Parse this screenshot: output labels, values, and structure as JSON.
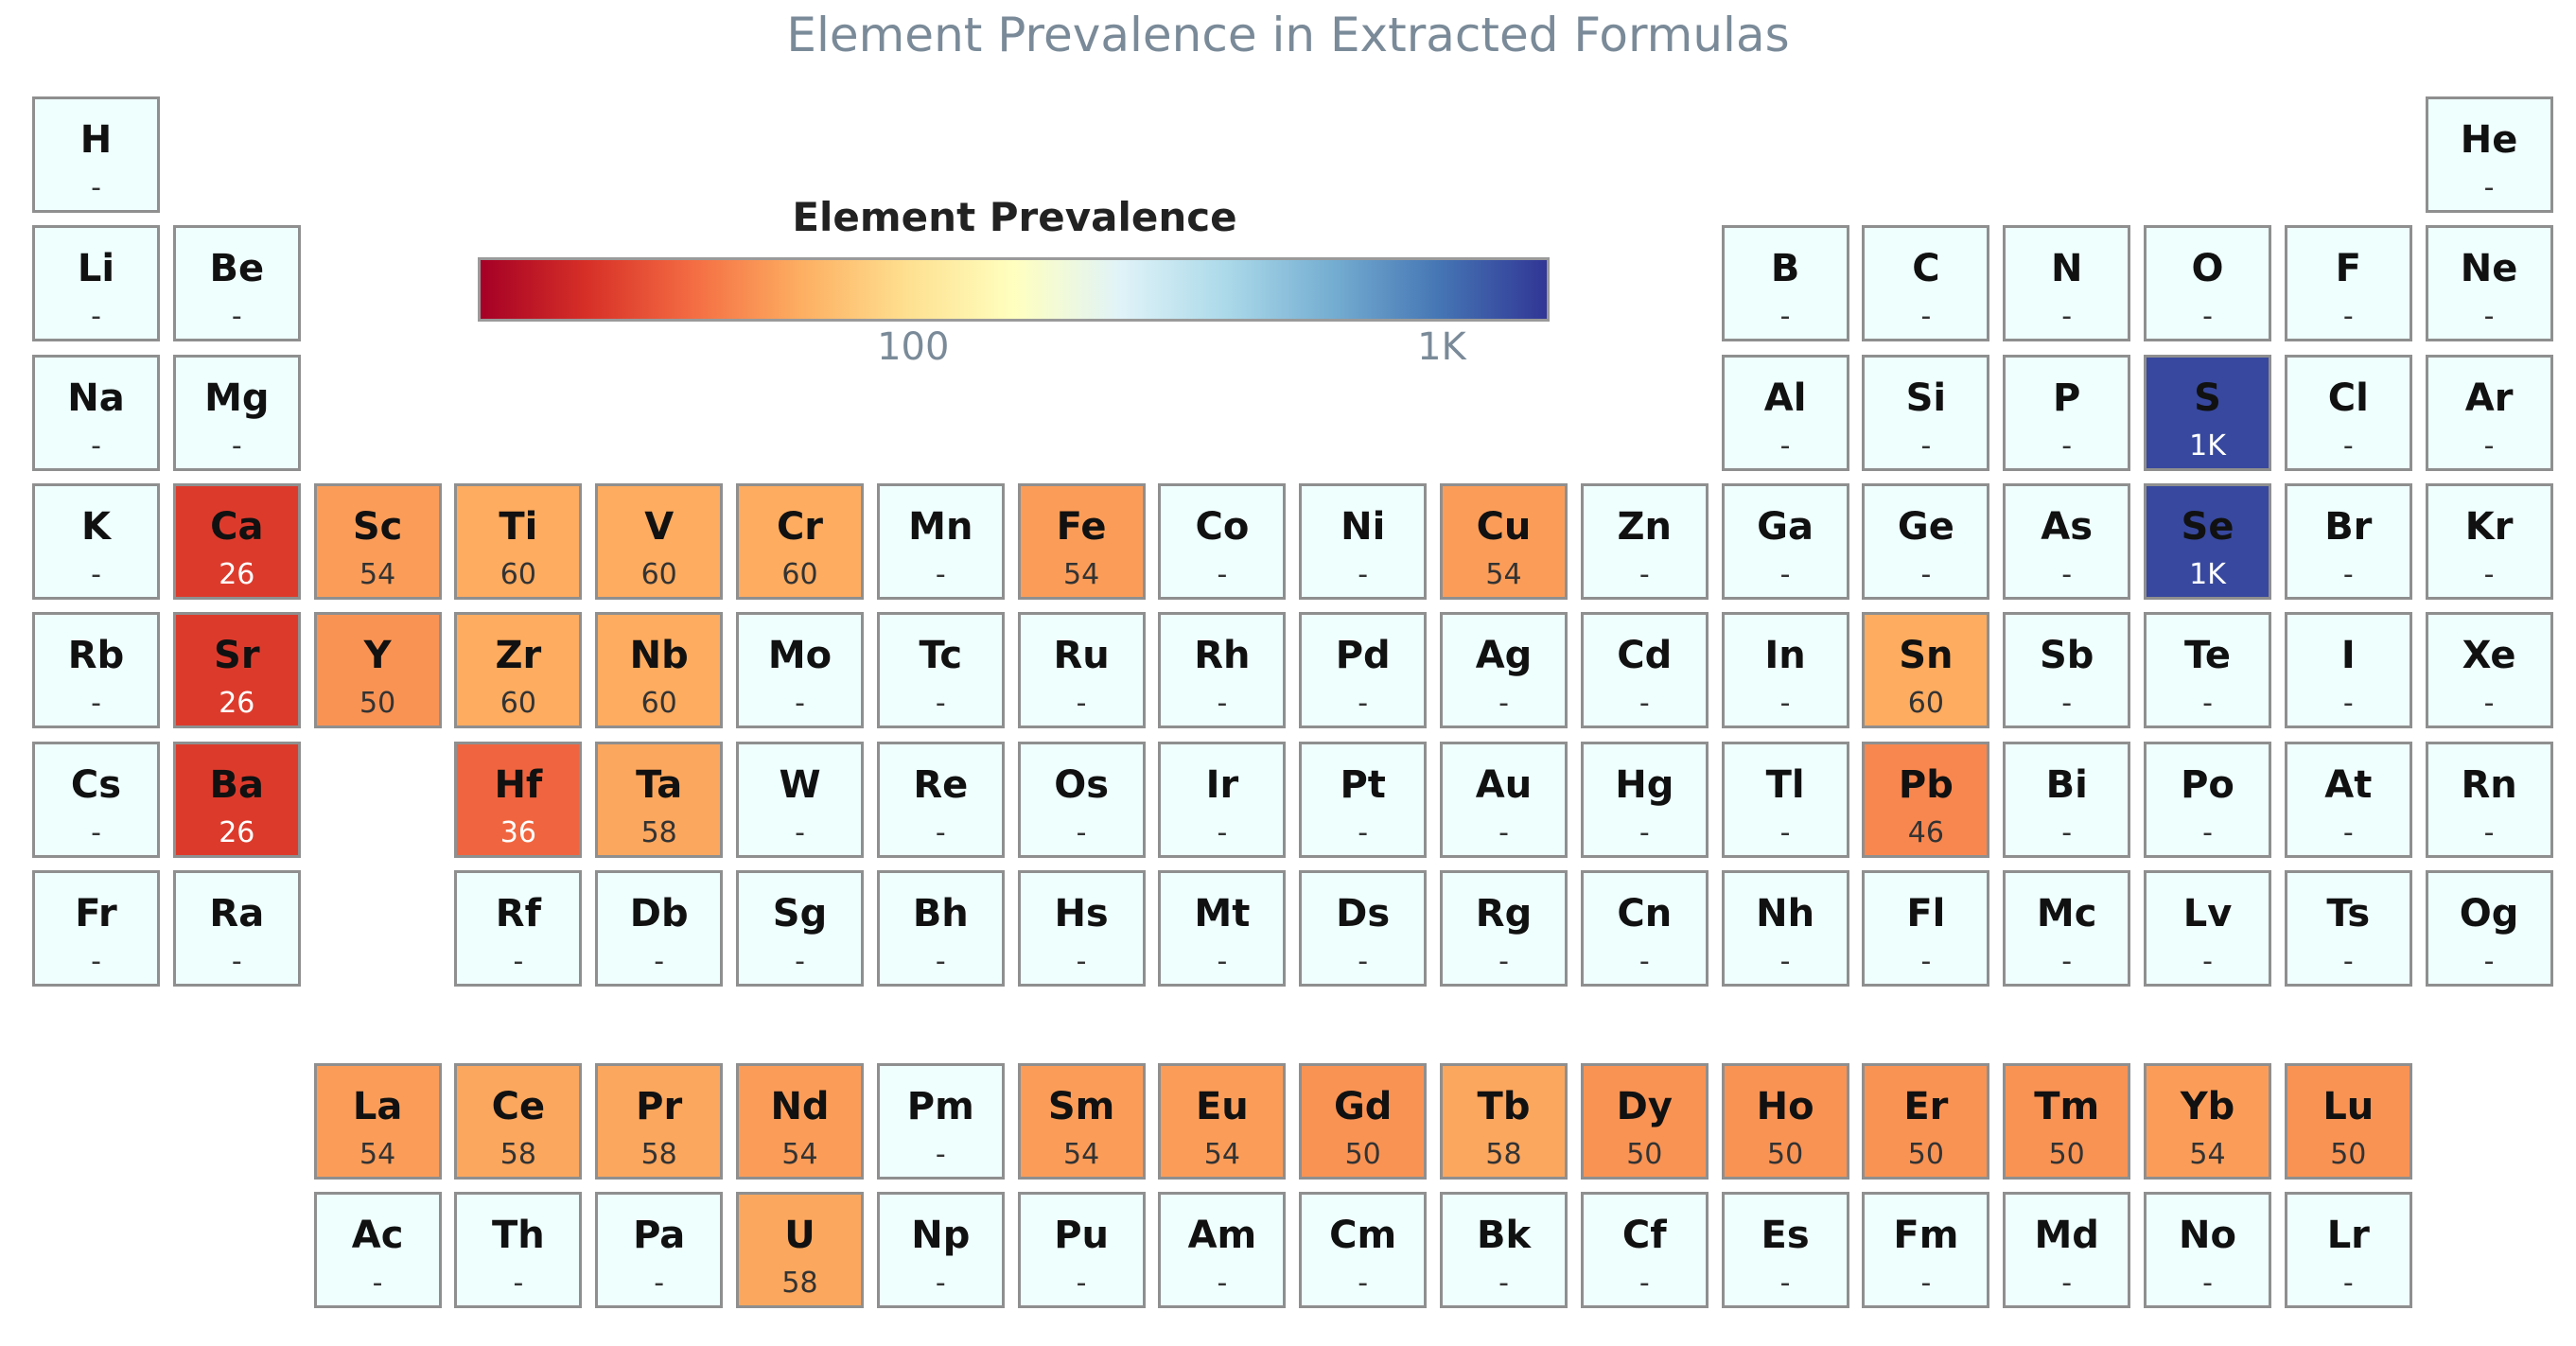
{
  "chart_data": {
    "type": "heatmap",
    "title": "Element Prevalence in Extracted Formulas",
    "colorbar": {
      "title": "Element Prevalence",
      "scale": "log",
      "range": [
        15,
        1600
      ],
      "ticks": [
        {
          "value": 100,
          "label": "100"
        },
        {
          "value": 1000,
          "label": "1K"
        }
      ],
      "colors": [
        "#a50026",
        "#d73027",
        "#f46d43",
        "#fdae61",
        "#fee090",
        "#ffffbf",
        "#e0f3f8",
        "#abd9e9",
        "#74add1",
        "#4575b4",
        "#313695"
      ]
    },
    "missing_label": "-",
    "missing_color": "#effffe",
    "elements": [
      {
        "symbol": "H",
        "row": 1,
        "col": 1,
        "value": null,
        "label": "-"
      },
      {
        "symbol": "He",
        "row": 1,
        "col": 18,
        "value": null,
        "label": "-"
      },
      {
        "symbol": "Li",
        "row": 2,
        "col": 1,
        "value": null,
        "label": "-"
      },
      {
        "symbol": "Be",
        "row": 2,
        "col": 2,
        "value": null,
        "label": "-"
      },
      {
        "symbol": "B",
        "row": 2,
        "col": 13,
        "value": null,
        "label": "-"
      },
      {
        "symbol": "C",
        "row": 2,
        "col": 14,
        "value": null,
        "label": "-"
      },
      {
        "symbol": "N",
        "row": 2,
        "col": 15,
        "value": null,
        "label": "-"
      },
      {
        "symbol": "O",
        "row": 2,
        "col": 16,
        "value": null,
        "label": "-"
      },
      {
        "symbol": "F",
        "row": 2,
        "col": 17,
        "value": null,
        "label": "-"
      },
      {
        "symbol": "Ne",
        "row": 2,
        "col": 18,
        "value": null,
        "label": "-"
      },
      {
        "symbol": "Na",
        "row": 3,
        "col": 1,
        "value": null,
        "label": "-"
      },
      {
        "symbol": "Mg",
        "row": 3,
        "col": 2,
        "value": null,
        "label": "-"
      },
      {
        "symbol": "Al",
        "row": 3,
        "col": 13,
        "value": null,
        "label": "-"
      },
      {
        "symbol": "Si",
        "row": 3,
        "col": 14,
        "value": null,
        "label": "-"
      },
      {
        "symbol": "P",
        "row": 3,
        "col": 15,
        "value": null,
        "label": "-"
      },
      {
        "symbol": "S",
        "row": 3,
        "col": 16,
        "value": 1400,
        "label": "1K"
      },
      {
        "symbol": "Cl",
        "row": 3,
        "col": 17,
        "value": null,
        "label": "-"
      },
      {
        "symbol": "Ar",
        "row": 3,
        "col": 18,
        "value": null,
        "label": "-"
      },
      {
        "symbol": "K",
        "row": 4,
        "col": 1,
        "value": null,
        "label": "-"
      },
      {
        "symbol": "Ca",
        "row": 4,
        "col": 2,
        "value": 26,
        "label": "26"
      },
      {
        "symbol": "Sc",
        "row": 4,
        "col": 3,
        "value": 54,
        "label": "54"
      },
      {
        "symbol": "Ti",
        "row": 4,
        "col": 4,
        "value": 60,
        "label": "60"
      },
      {
        "symbol": "V",
        "row": 4,
        "col": 5,
        "value": 60,
        "label": "60"
      },
      {
        "symbol": "Cr",
        "row": 4,
        "col": 6,
        "value": 60,
        "label": "60"
      },
      {
        "symbol": "Mn",
        "row": 4,
        "col": 7,
        "value": null,
        "label": "-"
      },
      {
        "symbol": "Fe",
        "row": 4,
        "col": 8,
        "value": 54,
        "label": "54"
      },
      {
        "symbol": "Co",
        "row": 4,
        "col": 9,
        "value": null,
        "label": "-"
      },
      {
        "symbol": "Ni",
        "row": 4,
        "col": 10,
        "value": null,
        "label": "-"
      },
      {
        "symbol": "Cu",
        "row": 4,
        "col": 11,
        "value": 54,
        "label": "54"
      },
      {
        "symbol": "Zn",
        "row": 4,
        "col": 12,
        "value": null,
        "label": "-"
      },
      {
        "symbol": "Ga",
        "row": 4,
        "col": 13,
        "value": null,
        "label": "-"
      },
      {
        "symbol": "Ge",
        "row": 4,
        "col": 14,
        "value": null,
        "label": "-"
      },
      {
        "symbol": "As",
        "row": 4,
        "col": 15,
        "value": null,
        "label": "-"
      },
      {
        "symbol": "Se",
        "row": 4,
        "col": 16,
        "value": 1400,
        "label": "1K"
      },
      {
        "symbol": "Br",
        "row": 4,
        "col": 17,
        "value": null,
        "label": "-"
      },
      {
        "symbol": "Kr",
        "row": 4,
        "col": 18,
        "value": null,
        "label": "-"
      },
      {
        "symbol": "Rb",
        "row": 5,
        "col": 1,
        "value": null,
        "label": "-"
      },
      {
        "symbol": "Sr",
        "row": 5,
        "col": 2,
        "value": 26,
        "label": "26"
      },
      {
        "symbol": "Y",
        "row": 5,
        "col": 3,
        "value": 50,
        "label": "50"
      },
      {
        "symbol": "Zr",
        "row": 5,
        "col": 4,
        "value": 60,
        "label": "60"
      },
      {
        "symbol": "Nb",
        "row": 5,
        "col": 5,
        "value": 60,
        "label": "60"
      },
      {
        "symbol": "Mo",
        "row": 5,
        "col": 6,
        "value": null,
        "label": "-"
      },
      {
        "symbol": "Tc",
        "row": 5,
        "col": 7,
        "value": null,
        "label": "-"
      },
      {
        "symbol": "Ru",
        "row": 5,
        "col": 8,
        "value": null,
        "label": "-"
      },
      {
        "symbol": "Rh",
        "row": 5,
        "col": 9,
        "value": null,
        "label": "-"
      },
      {
        "symbol": "Pd",
        "row": 5,
        "col": 10,
        "value": null,
        "label": "-"
      },
      {
        "symbol": "Ag",
        "row": 5,
        "col": 11,
        "value": null,
        "label": "-"
      },
      {
        "symbol": "Cd",
        "row": 5,
        "col": 12,
        "value": null,
        "label": "-"
      },
      {
        "symbol": "In",
        "row": 5,
        "col": 13,
        "value": null,
        "label": "-"
      },
      {
        "symbol": "Sn",
        "row": 5,
        "col": 14,
        "value": 60,
        "label": "60"
      },
      {
        "symbol": "Sb",
        "row": 5,
        "col": 15,
        "value": null,
        "label": "-"
      },
      {
        "symbol": "Te",
        "row": 5,
        "col": 16,
        "value": null,
        "label": "-"
      },
      {
        "symbol": "I",
        "row": 5,
        "col": 17,
        "value": null,
        "label": "-"
      },
      {
        "symbol": "Xe",
        "row": 5,
        "col": 18,
        "value": null,
        "label": "-"
      },
      {
        "symbol": "Cs",
        "row": 6,
        "col": 1,
        "value": null,
        "label": "-"
      },
      {
        "symbol": "Ba",
        "row": 6,
        "col": 2,
        "value": 26,
        "label": "26"
      },
      {
        "symbol": "Hf",
        "row": 6,
        "col": 4,
        "value": 36,
        "label": "36"
      },
      {
        "symbol": "Ta",
        "row": 6,
        "col": 5,
        "value": 58,
        "label": "58"
      },
      {
        "symbol": "W",
        "row": 6,
        "col": 6,
        "value": null,
        "label": "-"
      },
      {
        "symbol": "Re",
        "row": 6,
        "col": 7,
        "value": null,
        "label": "-"
      },
      {
        "symbol": "Os",
        "row": 6,
        "col": 8,
        "value": null,
        "label": "-"
      },
      {
        "symbol": "Ir",
        "row": 6,
        "col": 9,
        "value": null,
        "label": "-"
      },
      {
        "symbol": "Pt",
        "row": 6,
        "col": 10,
        "value": null,
        "label": "-"
      },
      {
        "symbol": "Au",
        "row": 6,
        "col": 11,
        "value": null,
        "label": "-"
      },
      {
        "symbol": "Hg",
        "row": 6,
        "col": 12,
        "value": null,
        "label": "-"
      },
      {
        "symbol": "Tl",
        "row": 6,
        "col": 13,
        "value": null,
        "label": "-"
      },
      {
        "symbol": "Pb",
        "row": 6,
        "col": 14,
        "value": 46,
        "label": "46"
      },
      {
        "symbol": "Bi",
        "row": 6,
        "col": 15,
        "value": null,
        "label": "-"
      },
      {
        "symbol": "Po",
        "row": 6,
        "col": 16,
        "value": null,
        "label": "-"
      },
      {
        "symbol": "At",
        "row": 6,
        "col": 17,
        "value": null,
        "label": "-"
      },
      {
        "symbol": "Rn",
        "row": 6,
        "col": 18,
        "value": null,
        "label": "-"
      },
      {
        "symbol": "Fr",
        "row": 7,
        "col": 1,
        "value": null,
        "label": "-"
      },
      {
        "symbol": "Ra",
        "row": 7,
        "col": 2,
        "value": null,
        "label": "-"
      },
      {
        "symbol": "Rf",
        "row": 7,
        "col": 4,
        "value": null,
        "label": "-"
      },
      {
        "symbol": "Db",
        "row": 7,
        "col": 5,
        "value": null,
        "label": "-"
      },
      {
        "symbol": "Sg",
        "row": 7,
        "col": 6,
        "value": null,
        "label": "-"
      },
      {
        "symbol": "Bh",
        "row": 7,
        "col": 7,
        "value": null,
        "label": "-"
      },
      {
        "symbol": "Hs",
        "row": 7,
        "col": 8,
        "value": null,
        "label": "-"
      },
      {
        "symbol": "Mt",
        "row": 7,
        "col": 9,
        "value": null,
        "label": "-"
      },
      {
        "symbol": "Ds",
        "row": 7,
        "col": 10,
        "value": null,
        "label": "-"
      },
      {
        "symbol": "Rg",
        "row": 7,
        "col": 11,
        "value": null,
        "label": "-"
      },
      {
        "symbol": "Cn",
        "row": 7,
        "col": 12,
        "value": null,
        "label": "-"
      },
      {
        "symbol": "Nh",
        "row": 7,
        "col": 13,
        "value": null,
        "label": "-"
      },
      {
        "symbol": "Fl",
        "row": 7,
        "col": 14,
        "value": null,
        "label": "-"
      },
      {
        "symbol": "Mc",
        "row": 7,
        "col": 15,
        "value": null,
        "label": "-"
      },
      {
        "symbol": "Lv",
        "row": 7,
        "col": 16,
        "value": null,
        "label": "-"
      },
      {
        "symbol": "Ts",
        "row": 7,
        "col": 17,
        "value": null,
        "label": "-"
      },
      {
        "symbol": "Og",
        "row": 7,
        "col": 18,
        "value": null,
        "label": "-"
      },
      {
        "symbol": "La",
        "row": 9,
        "col": 3,
        "value": 54,
        "label": "54"
      },
      {
        "symbol": "Ce",
        "row": 9,
        "col": 4,
        "value": 58,
        "label": "58"
      },
      {
        "symbol": "Pr",
        "row": 9,
        "col": 5,
        "value": 58,
        "label": "58"
      },
      {
        "symbol": "Nd",
        "row": 9,
        "col": 6,
        "value": 54,
        "label": "54"
      },
      {
        "symbol": "Pm",
        "row": 9,
        "col": 7,
        "value": null,
        "label": "-"
      },
      {
        "symbol": "Sm",
        "row": 9,
        "col": 8,
        "value": 54,
        "label": "54"
      },
      {
        "symbol": "Eu",
        "row": 9,
        "col": 9,
        "value": 54,
        "label": "54"
      },
      {
        "symbol": "Gd",
        "row": 9,
        "col": 10,
        "value": 50,
        "label": "50"
      },
      {
        "symbol": "Tb",
        "row": 9,
        "col": 11,
        "value": 58,
        "label": "58"
      },
      {
        "symbol": "Dy",
        "row": 9,
        "col": 12,
        "value": 50,
        "label": "50"
      },
      {
        "symbol": "Ho",
        "row": 9,
        "col": 13,
        "value": 50,
        "label": "50"
      },
      {
        "symbol": "Er",
        "row": 9,
        "col": 14,
        "value": 50,
        "label": "50"
      },
      {
        "symbol": "Tm",
        "row": 9,
        "col": 15,
        "value": 50,
        "label": "50"
      },
      {
        "symbol": "Yb",
        "row": 9,
        "col": 16,
        "value": 54,
        "label": "54"
      },
      {
        "symbol": "Lu",
        "row": 9,
        "col": 17,
        "value": 50,
        "label": "50"
      },
      {
        "symbol": "Ac",
        "row": 10,
        "col": 3,
        "value": null,
        "label": "-"
      },
      {
        "symbol": "Th",
        "row": 10,
        "col": 4,
        "value": null,
        "label": "-"
      },
      {
        "symbol": "Pa",
        "row": 10,
        "col": 5,
        "value": null,
        "label": "-"
      },
      {
        "symbol": "U",
        "row": 10,
        "col": 6,
        "value": 58,
        "label": "58"
      },
      {
        "symbol": "Np",
        "row": 10,
        "col": 7,
        "value": null,
        "label": "-"
      },
      {
        "symbol": "Pu",
        "row": 10,
        "col": 8,
        "value": null,
        "label": "-"
      },
      {
        "symbol": "Am",
        "row": 10,
        "col": 9,
        "value": null,
        "label": "-"
      },
      {
        "symbol": "Cm",
        "row": 10,
        "col": 10,
        "value": null,
        "label": "-"
      },
      {
        "symbol": "Bk",
        "row": 10,
        "col": 11,
        "value": null,
        "label": "-"
      },
      {
        "symbol": "Cf",
        "row": 10,
        "col": 12,
        "value": null,
        "label": "-"
      },
      {
        "symbol": "Es",
        "row": 10,
        "col": 13,
        "value": null,
        "label": "-"
      },
      {
        "symbol": "Fm",
        "row": 10,
        "col": 14,
        "value": null,
        "label": "-"
      },
      {
        "symbol": "Md",
        "row": 10,
        "col": 15,
        "value": null,
        "label": "-"
      },
      {
        "symbol": "No",
        "row": 10,
        "col": 16,
        "value": null,
        "label": "-"
      },
      {
        "symbol": "Lr",
        "row": 10,
        "col": 17,
        "value": null,
        "label": "-"
      }
    ]
  }
}
